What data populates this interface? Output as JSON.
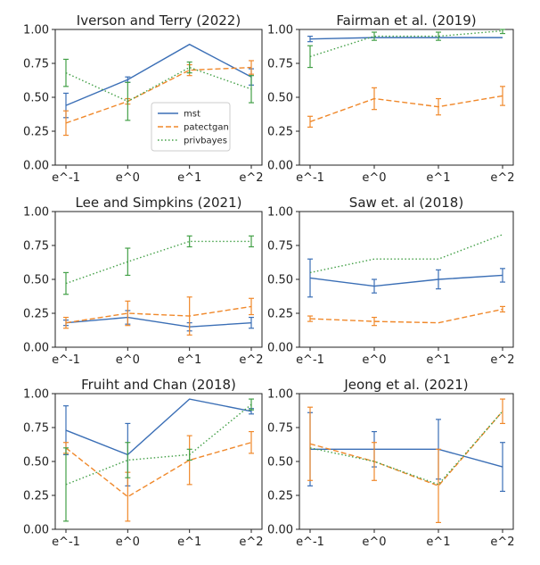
{
  "colors": {
    "mst": "#3b6fb6",
    "patectgan": "#f0882a",
    "privbayes": "#43a047"
  },
  "legend": {
    "entries": [
      "mst",
      "patectgan",
      "privbayes"
    ]
  },
  "chart_data": [
    {
      "type": "line",
      "title": "Iverson and Terry (2022)",
      "xlabel": "",
      "ylabel": "",
      "categories": [
        "e^-1",
        "e^0",
        "e^1",
        "e^2"
      ],
      "ylim": [
        0,
        1
      ],
      "yticks": [
        "0.00",
        "0.25",
        "0.50",
        "0.75",
        "1.00"
      ],
      "legend": "inside-center",
      "series": [
        {
          "name": "mst",
          "values": [
            0.44,
            0.63,
            0.89,
            0.65
          ],
          "err": [
            0.09,
            0.02,
            0.0,
            0.06
          ]
        },
        {
          "name": "patectgan",
          "values": [
            0.31,
            0.47,
            0.7,
            0.72
          ],
          "err": [
            0.09,
            0.02,
            0.04,
            0.05
          ]
        },
        {
          "name": "privbayes",
          "values": [
            0.68,
            0.47,
            0.72,
            0.56
          ],
          "err": [
            0.1,
            0.14,
            0.04,
            0.1
          ]
        }
      ]
    },
    {
      "type": "line",
      "title": "Fairman et al. (2019)",
      "xlabel": "",
      "ylabel": "",
      "categories": [
        "e^-1",
        "e^0",
        "e^1",
        "e^2"
      ],
      "ylim": [
        0,
        1
      ],
      "yticks": [
        "0.00",
        "0.25",
        "0.50",
        "0.75",
        "1.00"
      ],
      "series": [
        {
          "name": "mst",
          "values": [
            0.93,
            0.94,
            0.94,
            0.94
          ],
          "err": [
            0.02,
            0.0,
            0.0,
            0.0
          ]
        },
        {
          "name": "patectgan",
          "values": [
            0.32,
            0.49,
            0.43,
            0.51
          ],
          "err": [
            0.04,
            0.08,
            0.06,
            0.07
          ]
        },
        {
          "name": "privbayes",
          "values": [
            0.8,
            0.95,
            0.95,
            0.99
          ],
          "err": [
            0.08,
            0.03,
            0.03,
            0.02
          ]
        }
      ]
    },
    {
      "type": "line",
      "title": "Lee and Simpkins (2021)",
      "xlabel": "",
      "ylabel": "",
      "categories": [
        "e^-1",
        "e^0",
        "e^1",
        "e^2"
      ],
      "ylim": [
        0,
        1
      ],
      "yticks": [
        "0.00",
        "0.25",
        "0.50",
        "0.75",
        "1.00"
      ],
      "series": [
        {
          "name": "mst",
          "values": [
            0.18,
            0.22,
            0.15,
            0.18
          ],
          "err": [
            0.02,
            0.05,
            0.03,
            0.04
          ]
        },
        {
          "name": "patectgan",
          "values": [
            0.18,
            0.25,
            0.23,
            0.3
          ],
          "err": [
            0.04,
            0.09,
            0.14,
            0.06
          ]
        },
        {
          "name": "privbayes",
          "values": [
            0.47,
            0.63,
            0.78,
            0.78
          ],
          "err": [
            0.08,
            0.1,
            0.04,
            0.04
          ]
        }
      ]
    },
    {
      "type": "line",
      "title": "Saw et. al (2018)",
      "xlabel": "",
      "ylabel": "",
      "categories": [
        "e^-1",
        "e^0",
        "e^1",
        "e^2"
      ],
      "ylim": [
        0,
        1
      ],
      "yticks": [
        "0.00",
        "0.25",
        "0.50",
        "0.75",
        "1.00"
      ],
      "series": [
        {
          "name": "mst",
          "values": [
            0.51,
            0.45,
            0.5,
            0.53
          ],
          "err": [
            0.14,
            0.05,
            0.07,
            0.05
          ]
        },
        {
          "name": "patectgan",
          "values": [
            0.21,
            0.19,
            0.18,
            0.28
          ],
          "err": [
            0.02,
            0.03,
            0.0,
            0.02
          ]
        },
        {
          "name": "privbayes",
          "values": [
            0.55,
            0.65,
            0.65,
            0.83
          ],
          "err": [
            0.0,
            0.0,
            0.0,
            0.0
          ]
        }
      ]
    },
    {
      "type": "line",
      "title": "Fruiht and Chan (2018)",
      "xlabel": "",
      "ylabel": "",
      "categories": [
        "e^-1",
        "e^0",
        "e^1",
        "e^2"
      ],
      "ylim": [
        0,
        1
      ],
      "yticks": [
        "0.00",
        "0.25",
        "0.50",
        "0.75",
        "1.00"
      ],
      "series": [
        {
          "name": "mst",
          "values": [
            0.73,
            0.55,
            0.96,
            0.87
          ],
          "err": [
            0.18,
            0.23,
            0.0,
            0.02
          ]
        },
        {
          "name": "patectgan",
          "values": [
            0.6,
            0.24,
            0.51,
            0.64
          ],
          "err": [
            0.04,
            0.18,
            0.18,
            0.08
          ]
        },
        {
          "name": "privbayes",
          "values": [
            0.33,
            0.51,
            0.55,
            0.92
          ],
          "err": [
            0.27,
            0.13,
            0.04,
            0.04
          ]
        }
      ]
    },
    {
      "type": "line",
      "title": "Jeong et al. (2021)",
      "xlabel": "",
      "ylabel": "",
      "categories": [
        "e^-1",
        "e^0",
        "e^1",
        "e^2"
      ],
      "ylim": [
        0,
        1
      ],
      "yticks": [
        "0.00",
        "0.25",
        "0.50",
        "0.75",
        "1.00"
      ],
      "series": [
        {
          "name": "mst",
          "values": [
            0.59,
            0.59,
            0.59,
            0.46
          ],
          "err": [
            0.27,
            0.13,
            0.22,
            0.18
          ]
        },
        {
          "name": "patectgan",
          "values": [
            0.63,
            0.5,
            0.32,
            0.87
          ],
          "err": [
            0.27,
            0.14,
            0.27,
            0.09
          ]
        },
        {
          "name": "privbayes",
          "values": [
            0.6,
            0.5,
            0.33,
            0.87
          ],
          "err": [
            0.0,
            0.0,
            0.0,
            0.0
          ]
        }
      ]
    }
  ]
}
